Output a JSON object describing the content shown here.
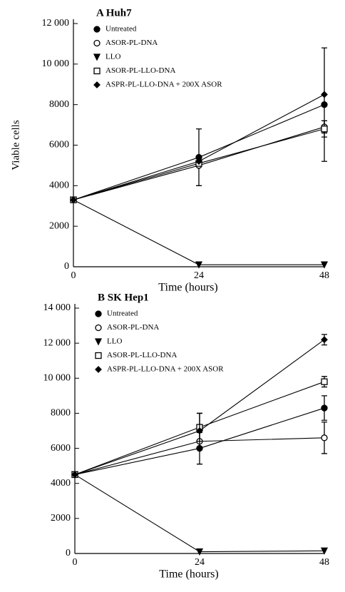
{
  "chart_data": [
    {
      "type": "line",
      "title": "A Huh7",
      "xlabel": "Time (hours)",
      "ylabel": "Viable cells",
      "x": [
        0,
        24,
        48
      ],
      "xlim": [
        0,
        48
      ],
      "xticks": [
        0,
        24,
        48
      ],
      "ylim": [
        0,
        12000
      ],
      "yticks": [
        0,
        2000,
        4000,
        6000,
        8000,
        {
          "value": 10000,
          "label": "10 000"
        },
        {
          "value": 12000,
          "label": "12 000"
        }
      ],
      "color": "#000000",
      "series": [
        {
          "name": "Untreated",
          "marker": "circle-filled",
          "values": [
            3300,
            5400,
            8000
          ],
          "errors": [
            null,
            1400,
            2800
          ]
        },
        {
          "name": "ASOR-PL-DNA",
          "marker": "circle-open",
          "values": [
            3300,
            5000,
            6900
          ],
          "errors": [
            null,
            null,
            300
          ]
        },
        {
          "name": "LLO",
          "marker": "triangle-down",
          "values": [
            3300,
            100,
            100
          ],
          "errors": [
            null,
            null,
            null
          ]
        },
        {
          "name": "ASOR-PL-LLO-DNA",
          "marker": "square-open",
          "values": [
            3300,
            5100,
            6800
          ],
          "errors": [
            null,
            null,
            400
          ]
        },
        {
          "name": "ASPR-PL-LLO-DNA + 200X ASOR",
          "marker": "diamond-filled",
          "values": [
            3300,
            5200,
            8500
          ],
          "errors": [
            null,
            null,
            null
          ]
        }
      ]
    },
    {
      "type": "line",
      "title": "B SK Hep1",
      "xlabel": "Time (hours)",
      "x": [
        0,
        24,
        48
      ],
      "xlim": [
        0,
        48
      ],
      "xticks": [
        0,
        24,
        48
      ],
      "ylim": [
        0,
        14000
      ],
      "yticks": [
        0,
        2000,
        4000,
        6000,
        8000,
        {
          "value": 10000,
          "label": "10 000"
        },
        {
          "value": 12000,
          "label": "12 000"
        },
        {
          "value": 14000,
          "label": "14 000"
        }
      ],
      "color": "#000000",
      "series": [
        {
          "name": "Untreated",
          "marker": "circle-filled",
          "values": [
            4500,
            6000,
            8300
          ],
          "errors": [
            null,
            900,
            700
          ]
        },
        {
          "name": "ASOR-PL-DNA",
          "marker": "circle-open",
          "values": [
            4500,
            6400,
            6600
          ],
          "errors": [
            null,
            null,
            900
          ]
        },
        {
          "name": "LLO",
          "marker": "triangle-down",
          "values": [
            4500,
            100,
            150
          ],
          "errors": [
            null,
            null,
            null
          ]
        },
        {
          "name": "ASOR-PL-LLO-DNA",
          "marker": "square-open",
          "values": [
            4500,
            7200,
            9800
          ],
          "errors": [
            null,
            800,
            300
          ]
        },
        {
          "name": "ASPR-PL-LLO-DNA + 200X ASOR",
          "marker": "diamond-filled",
          "values": [
            4500,
            7000,
            12200
          ],
          "errors": [
            null,
            1000,
            300
          ]
        }
      ]
    }
  ]
}
